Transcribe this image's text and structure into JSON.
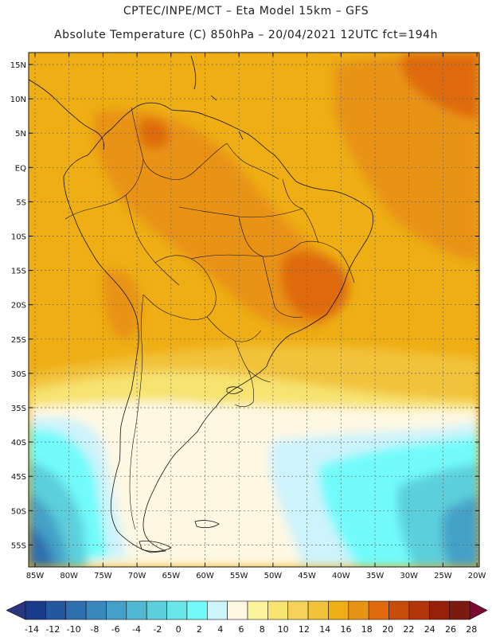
{
  "title_line1": "CPTEC/INPE/MCT –  Eta Model 15km – GFS",
  "title_line2": "Absolute Temperature (C) 850hPa – 20/04/2021 12UTC fct=194h",
  "lat_labels": [
    "15N",
    "10N",
    "5N",
    "EQ",
    "5S",
    "10S",
    "15S",
    "20S",
    "25S",
    "30S",
    "35S",
    "40S",
    "45S",
    "50S",
    "55S"
  ],
  "lon_labels": [
    "85W",
    "80W",
    "75W",
    "70W",
    "65W",
    "60W",
    "55W",
    "50W",
    "45W",
    "40W",
    "35W",
    "30W",
    "25W",
    "20W"
  ],
  "colorbar": {
    "labels": [
      "-14",
      "-12",
      "-10",
      "-8",
      "-6",
      "-4",
      "-2",
      "0",
      "2",
      "4",
      "6",
      "8",
      "10",
      "12",
      "14",
      "16",
      "18",
      "20",
      "22",
      "24",
      "26",
      "28"
    ],
    "colors": [
      "#1a3a8c",
      "#2556a0",
      "#2e6fb0",
      "#3a86bf",
      "#45a0c8",
      "#50b8d2",
      "#5ccfdc",
      "#68e6ea",
      "#72fbfb",
      "#cdf3fb",
      "#fef8e2",
      "#fbf39a",
      "#f7e36f",
      "#f6d358",
      "#f2c23a",
      "#eeae14",
      "#e89312",
      "#de6a0c",
      "#c84c0a",
      "#b5350a",
      "#992008",
      "#7a1a10"
    ],
    "under_color": "#2a3580",
    "over_color": "#7b0a2e"
  },
  "map_colors": {
    "deep_orange": "#de6a0c",
    "orange": "#e89312",
    "amber": "#eeae14",
    "gold": "#f2c23a",
    "yellow": "#f7e36f",
    "pale_yellow": "#fbf39a",
    "cream": "#fef8e2",
    "ice": "#cdf3fb",
    "cyan": "#72fbfb",
    "aqua": "#5ccfdc",
    "sky": "#45a0c8",
    "blue": "#2e6fb0",
    "navy": "#1a3a8c"
  }
}
